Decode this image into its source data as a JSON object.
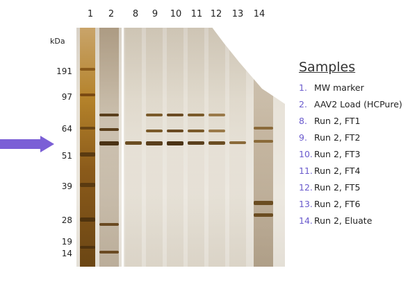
{
  "lanes": [
    "1",
    "2",
    "8",
    "9",
    "10",
    "11",
    "12",
    "13",
    "14"
  ],
  "kda_label": "kDa",
  "mw_markers": [
    "191",
    "97",
    "64",
    "51",
    "39",
    "28",
    "19",
    "14"
  ],
  "samples": {
    "title": "Samples",
    "items": [
      {
        "num": "1.",
        "label": "MW marker"
      },
      {
        "num": "2.",
        "label": "AAV2 Load (HCPure)"
      },
      {
        "num": "8.",
        "label": "Run 2, FT1"
      },
      {
        "num": "9.",
        "label": "Run 2, FT2"
      },
      {
        "num": "10.",
        "label": "Run 2, FT3"
      },
      {
        "num": "11.",
        "label": "Run 2, FT4"
      },
      {
        "num": "12.",
        "label": "Run 2, FT5"
      },
      {
        "num": "13.",
        "label": "Run 2, FT6"
      },
      {
        "num": "14.",
        "label": "Run 2, Eluate"
      }
    ]
  },
  "colors": {
    "arrow": "#7b5fd6",
    "sample_number": "#6a5acd",
    "band_dark": "#5a3f1c",
    "marker_ladder": "#b07a1a"
  }
}
